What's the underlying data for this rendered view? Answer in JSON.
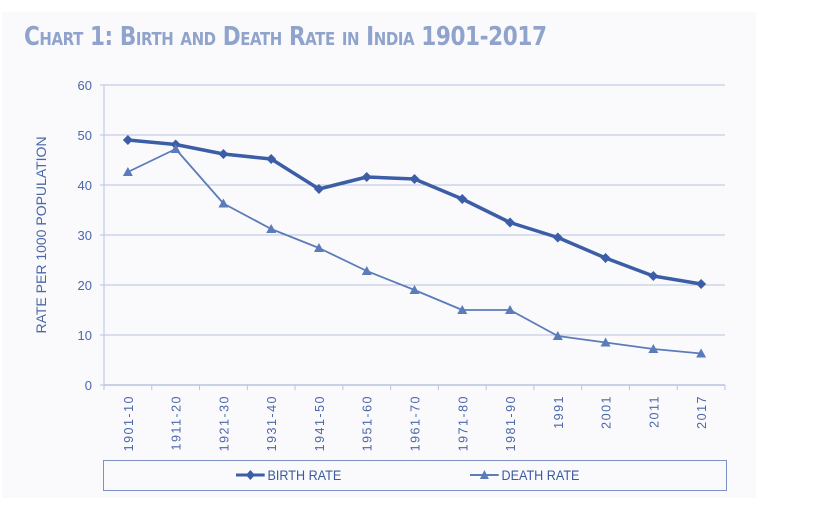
{
  "chart_data": {
    "type": "line",
    "title": "Chart 1: Birth and Death Rate in India 1901-2017",
    "ylabel": "RATE PER 1000 POPULATION",
    "xlabel": "",
    "ylim": [
      0,
      60
    ],
    "yticks": [
      0,
      10,
      20,
      30,
      40,
      50,
      60
    ],
    "grid": true,
    "legend_placement": "bottom",
    "categories": [
      "1901-10",
      "1911-20",
      "1921-30",
      "1931-40",
      "1941-50",
      "1951-60",
      "1961-70",
      "1971-80",
      "1981-90",
      "1991",
      "2001",
      "2011",
      "2017"
    ],
    "series": [
      {
        "name": "BIRTH RATE",
        "marker": "diamond",
        "color": "#3b5ea6",
        "values": [
          49.0,
          48.1,
          46.2,
          45.2,
          39.2,
          41.6,
          41.2,
          37.2,
          32.5,
          29.5,
          25.4,
          21.8,
          20.2
        ]
      },
      {
        "name": "DEATH RATE",
        "marker": "triangle",
        "color": "#5b7cb8",
        "values": [
          42.6,
          47.2,
          36.3,
          31.2,
          27.4,
          22.8,
          19.0,
          15.0,
          15.0,
          9.8,
          8.5,
          7.2,
          6.3
        ]
      }
    ]
  },
  "colors": {
    "title": "#8fa3cc",
    "grid": "#b8c3de",
    "axis_text": "#4a67a8",
    "panel": "#fafafd"
  }
}
